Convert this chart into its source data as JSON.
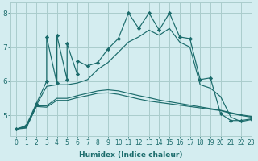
{
  "title": "",
  "xlabel": "Humidex (Indice chaleur)",
  "ylabel": "",
  "bg_color": "#d4edf0",
  "grid_color": "#aacccc",
  "line_color": "#1a6b6b",
  "xlim": [
    -0.5,
    23
  ],
  "ylim": [
    4.4,
    8.3
  ],
  "yticks": [
    5,
    6,
    7,
    8
  ],
  "xticks": [
    0,
    1,
    2,
    3,
    4,
    5,
    6,
    7,
    8,
    9,
    10,
    11,
    12,
    13,
    14,
    15,
    16,
    17,
    18,
    19,
    20,
    21,
    22,
    23
  ],
  "lines": [
    {
      "x": [
        0,
        1,
        2,
        3,
        3,
        4,
        4,
        5,
        5,
        6,
        6,
        7,
        8,
        9,
        10,
        11,
        12,
        13,
        14,
        15,
        16,
        17,
        18,
        19,
        20,
        21,
        22,
        23
      ],
      "y": [
        4.6,
        4.7,
        5.35,
        6.0,
        7.3,
        5.95,
        7.35,
        6.05,
        7.1,
        6.2,
        6.6,
        6.45,
        6.55,
        6.95,
        7.25,
        8.0,
        7.55,
        8.0,
        7.5,
        8.0,
        7.3,
        7.25,
        6.05,
        6.1,
        5.05,
        4.85,
        4.85,
        4.9
      ],
      "marker": "D",
      "markersize": 2.2
    },
    {
      "x": [
        0,
        1,
        2,
        3,
        4,
        5,
        6,
        7,
        8,
        9,
        10,
        11,
        12,
        13,
        14,
        15,
        16,
        17,
        18,
        19,
        20,
        21,
        22,
        23
      ],
      "y": [
        4.6,
        4.68,
        5.3,
        5.85,
        5.9,
        5.9,
        5.95,
        6.05,
        6.35,
        6.55,
        6.85,
        7.15,
        7.3,
        7.5,
        7.35,
        7.55,
        7.15,
        7.0,
        5.9,
        5.8,
        5.55,
        4.95,
        4.82,
        4.88
      ],
      "marker": null,
      "markersize": 0
    },
    {
      "x": [
        0,
        1,
        2,
        3,
        4,
        5,
        6,
        7,
        8,
        9,
        10,
        11,
        12,
        13,
        14,
        15,
        16,
        17,
        18,
        19,
        20,
        21,
        22,
        23
      ],
      "y": [
        4.6,
        4.65,
        5.28,
        5.28,
        5.5,
        5.5,
        5.58,
        5.65,
        5.72,
        5.75,
        5.72,
        5.65,
        5.58,
        5.52,
        5.45,
        5.4,
        5.35,
        5.3,
        5.25,
        5.2,
        5.15,
        5.08,
        5.02,
        4.97
      ],
      "marker": null,
      "markersize": 0
    },
    {
      "x": [
        0,
        1,
        2,
        3,
        4,
        5,
        6,
        7,
        8,
        9,
        10,
        11,
        12,
        13,
        14,
        15,
        16,
        17,
        18,
        19,
        20,
        21,
        22,
        23
      ],
      "y": [
        4.6,
        4.63,
        5.26,
        5.24,
        5.44,
        5.44,
        5.52,
        5.58,
        5.65,
        5.66,
        5.62,
        5.55,
        5.48,
        5.42,
        5.38,
        5.34,
        5.3,
        5.26,
        5.22,
        5.18,
        5.14,
        5.06,
        5.0,
        4.95
      ],
      "marker": null,
      "markersize": 0
    }
  ]
}
